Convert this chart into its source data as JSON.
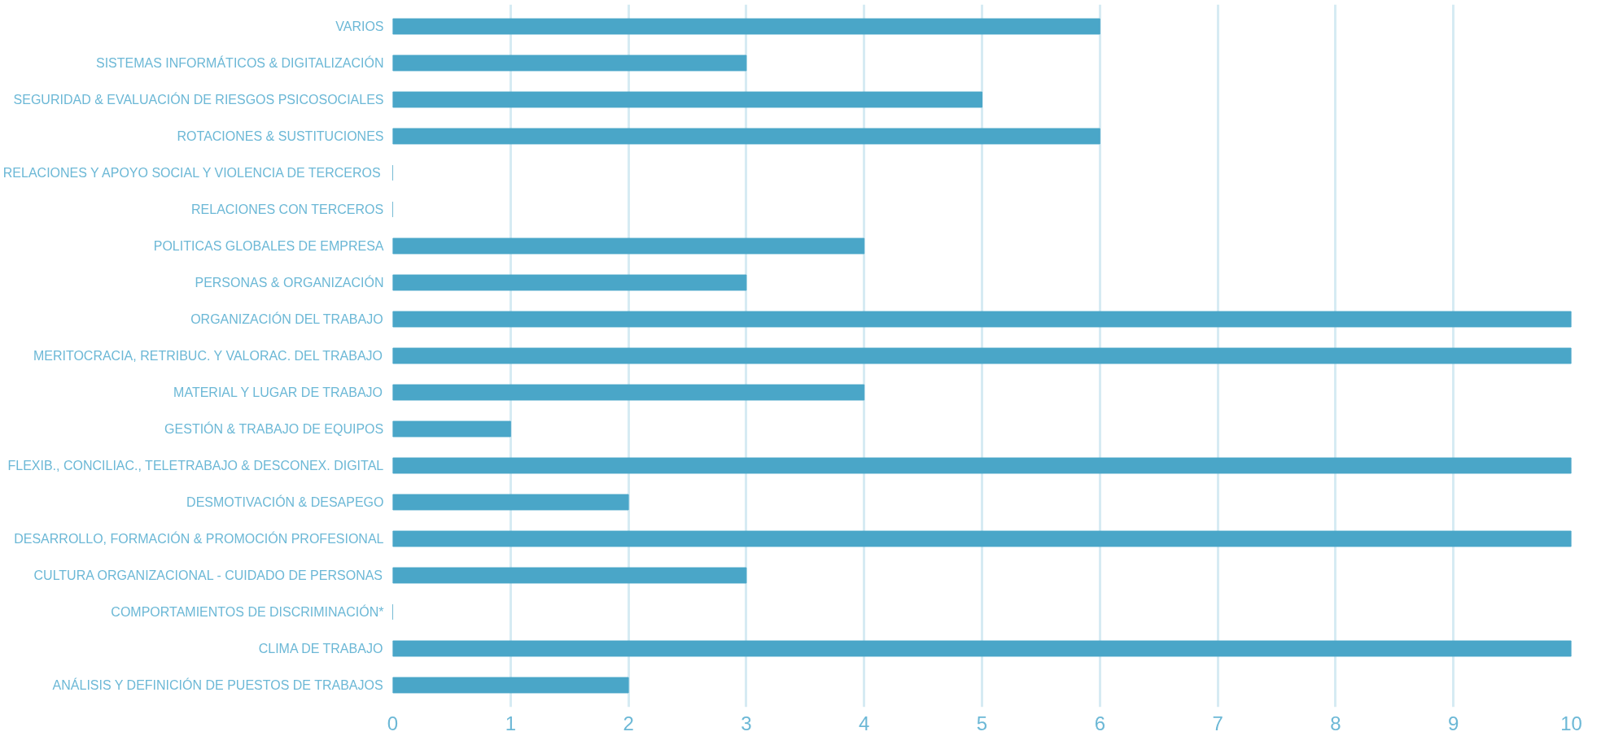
{
  "chart_data": {
    "type": "bar",
    "orientation": "horizontal",
    "categories": [
      "VARIOS",
      "SISTEMAS INFORMÁTICOS & DIGITALIZACIÓN",
      "SEGURIDAD & EVALUACIÓN DE RIESGOS PSICOSOCIALES",
      "ROTACIONES & SUSTITUCIONES",
      "RELACIONES Y APOYO SOCIAL Y VIOLENCIA DE TERCEROS",
      "RELACIONES CON TERCEROS",
      "POLITICAS GLOBALES DE EMPRESA",
      "PERSONAS & ORGANIZACIÓN",
      "ORGANIZACIÓN DEL TRABAJO",
      "MERITOCRACIA, RETRIBUC. Y VALORAC. DEL TRABAJO",
      "MATERIAL Y LUGAR DE TRABAJO",
      "GESTIÓN & TRABAJO DE EQUIPOS",
      "FLEXIB., CONCILIAC., TELETRABAJO & DESCONEX. DIGITAL",
      "DESMOTIVACIÓN & DESAPEGO",
      "DESARROLLO, FORMACIÓN & PROMOCIÓN PROFESIONAL",
      "CULTURA ORGANIZACIONAL - CUIDADO DE PERSONAS",
      "COMPORTAMIENTOS DE DISCRIMINACIÓN*",
      "CLIMA DE TRABAJO",
      "ANÁLISIS Y DEFINICIÓN DE PUESTOS DE TRABAJOS"
    ],
    "values": [
      6,
      3,
      5,
      6,
      0,
      0,
      4,
      3,
      10,
      10,
      4,
      1,
      10,
      2,
      10,
      3,
      0,
      10,
      2
    ],
    "color": "#4aa6c8",
    "xlim": [
      0,
      10
    ],
    "xticks": [
      0,
      1,
      2,
      3,
      4,
      5,
      6,
      7,
      8,
      9,
      10
    ],
    "grid": "x"
  }
}
